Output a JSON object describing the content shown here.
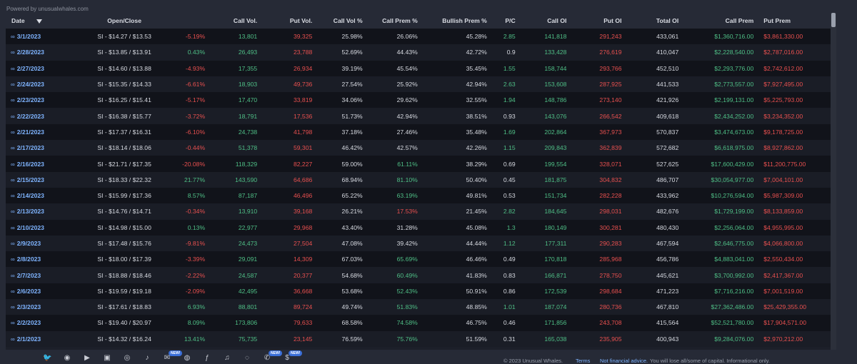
{
  "powered_by": "Powered by unusualwhales.com",
  "columns": [
    "Date",
    "Open/Close",
    "",
    "Call Vol.",
    "Put Vol.",
    "Call Vol %",
    "Call Prem %",
    "Bullish Prem %",
    "P/C",
    "Call OI",
    "Put OI",
    "Total OI",
    "Call Prem",
    "Put Prem"
  ],
  "rows": [
    [
      "3/1/2023",
      "SI - $14.27 / $13.53",
      "-5.19%",
      "13,801",
      "39,325",
      "25.98%",
      "26.06%",
      "45.28%",
      "2.85",
      "141,818",
      "291,243",
      "433,061",
      "$1,360,716.00",
      "$3,861,330.00"
    ],
    [
      "2/28/2023",
      "SI - $13.85 / $13.91",
      "0.43%",
      "26,493",
      "23,788",
      "52.69%",
      "44.43%",
      "42.72%",
      "0.9",
      "133,428",
      "276,619",
      "410,047",
      "$2,228,540.00",
      "$2,787,016.00"
    ],
    [
      "2/27/2023",
      "SI - $14.60 / $13.88",
      "-4.93%",
      "17,355",
      "26,934",
      "39.19%",
      "45.54%",
      "35.45%",
      "1.55",
      "158,744",
      "293,766",
      "452,510",
      "$2,293,776.00",
      "$2,742,612.00"
    ],
    [
      "2/24/2023",
      "SI - $15.35 / $14.33",
      "-6.61%",
      "18,903",
      "49,736",
      "27.54%",
      "25.92%",
      "42.94%",
      "2.63",
      "153,608",
      "287,925",
      "441,533",
      "$2,773,557.00",
      "$7,927,495.00"
    ],
    [
      "2/23/2023",
      "SI - $16.25 / $15.41",
      "-5.17%",
      "17,470",
      "33,819",
      "34.06%",
      "29.62%",
      "32.55%",
      "1.94",
      "148,786",
      "273,140",
      "421,926",
      "$2,199,131.00",
      "$5,225,793.00"
    ],
    [
      "2/22/2023",
      "SI - $16.38 / $15.77",
      "-3.72%",
      "18,791",
      "17,536",
      "51.73%",
      "42.94%",
      "38.51%",
      "0.93",
      "143,076",
      "266,542",
      "409,618",
      "$2,434,252.00",
      "$3,234,352.00"
    ],
    [
      "2/21/2023",
      "SI - $17.37 / $16.31",
      "-6.10%",
      "24,738",
      "41,798",
      "37.18%",
      "27.46%",
      "35.48%",
      "1.69",
      "202,864",
      "367,973",
      "570,837",
      "$3,474,673.00",
      "$9,178,725.00"
    ],
    [
      "2/17/2023",
      "SI - $18.14 / $18.06",
      "-0.44%",
      "51,378",
      "59,301",
      "46.42%",
      "42.57%",
      "42.26%",
      "1.15",
      "209,843",
      "362,839",
      "572,682",
      "$6,618,975.00",
      "$8,927,862.00"
    ],
    [
      "2/16/2023",
      "SI - $21.71 / $17.35",
      "-20.08%",
      "118,329",
      "82,227",
      "59.00%",
      "61.11%",
      "38.29%",
      "0.69",
      "199,554",
      "328,071",
      "527,625",
      "$17,600,429.00",
      "$11,200,775.00"
    ],
    [
      "2/15/2023",
      "SI - $18.33 / $22.32",
      "21.77%",
      "143,590",
      "64,686",
      "68.94%",
      "81.10%",
      "50.40%",
      "0.45",
      "181,875",
      "304,832",
      "486,707",
      "$30,054,977.00",
      "$7,004,101.00"
    ],
    [
      "2/14/2023",
      "SI - $15.99 / $17.36",
      "8.57%",
      "87,187",
      "46,496",
      "65.22%",
      "63.19%",
      "49.81%",
      "0.53",
      "151,734",
      "282,228",
      "433,962",
      "$10,276,594.00",
      "$5,987,309.00"
    ],
    [
      "2/13/2023",
      "SI - $14.76 / $14.71",
      "-0.34%",
      "13,910",
      "39,168",
      "26.21%",
      "17.53%",
      "21.45%",
      "2.82",
      "184,645",
      "298,031",
      "482,676",
      "$1,729,199.00",
      "$8,133,859.00"
    ],
    [
      "2/10/2023",
      "SI - $14.98 / $15.00",
      "0.13%",
      "22,977",
      "29,968",
      "43.40%",
      "31.28%",
      "45.08%",
      "1.3",
      "180,149",
      "300,281",
      "480,430",
      "$2,256,064.00",
      "$4,955,995.00"
    ],
    [
      "2/9/2023",
      "SI - $17.48 / $15.76",
      "-9.81%",
      "24,473",
      "27,504",
      "47.08%",
      "39.42%",
      "44.44%",
      "1.12",
      "177,311",
      "290,283",
      "467,594",
      "$2,646,775.00",
      "$4,066,800.00"
    ],
    [
      "2/8/2023",
      "SI - $18.00 / $17.39",
      "-3.39%",
      "29,091",
      "14,309",
      "67.03%",
      "65.69%",
      "46.46%",
      "0.49",
      "170,818",
      "285,968",
      "456,786",
      "$4,883,041.00",
      "$2,550,434.00"
    ],
    [
      "2/7/2023",
      "SI - $18.88 / $18.46",
      "-2.22%",
      "24,587",
      "20,377",
      "54.68%",
      "60.49%",
      "41.83%",
      "0.83",
      "166,871",
      "278,750",
      "445,621",
      "$3,700,992.00",
      "$2,417,367.00"
    ],
    [
      "2/6/2023",
      "SI - $19.59 / $19.18",
      "-2.09%",
      "42,495",
      "36,668",
      "53.68%",
      "52.43%",
      "50.91%",
      "0.86",
      "172,539",
      "298,684",
      "471,223",
      "$7,716,216.00",
      "$7,001,519.00"
    ],
    [
      "2/3/2023",
      "SI - $17.61 / $18.83",
      "6.93%",
      "88,801",
      "89,724",
      "49.74%",
      "51.83%",
      "48.85%",
      "1.01",
      "187,074",
      "280,736",
      "467,810",
      "$27,362,486.00",
      "$25,429,355.00"
    ],
    [
      "2/2/2023",
      "SI - $19.40 / $20.97",
      "8.09%",
      "173,806",
      "79,633",
      "68.58%",
      "74.58%",
      "46.75%",
      "0.46",
      "171,856",
      "243,708",
      "415,564",
      "$52,521,780.00",
      "$17,904,571.00"
    ],
    [
      "2/1/2023",
      "SI - $14.32 / $16.24",
      "13.41%",
      "75,735",
      "23,145",
      "76.59%",
      "75.76%",
      "51.59%",
      "0.31",
      "165,038",
      "235,905",
      "400,943",
      "$9,284,076.00",
      "$2,970,212.00"
    ]
  ],
  "colors": {
    "green": "#4fbf86",
    "red": "#e8504f",
    "link": "#7fb4ff"
  },
  "footer": {
    "icons": [
      "twitter-icon",
      "discord-icon",
      "youtube-icon",
      "twitch-icon",
      "instagram-icon",
      "tiktok-icon",
      "newsletter-icon",
      "reddit-icon",
      "facebook-icon",
      "music-icon",
      "spotify-icon",
      "chat-icon",
      "dollar-icon"
    ],
    "badges": [
      "NEW!",
      "NEW!",
      "NEW!"
    ],
    "copyright": "© 2023 Unusual Whales.",
    "terms": "Terms",
    "nfa": "Not financial advice.",
    "disclaimer": "You will lose all/some of capital. Informational only."
  }
}
